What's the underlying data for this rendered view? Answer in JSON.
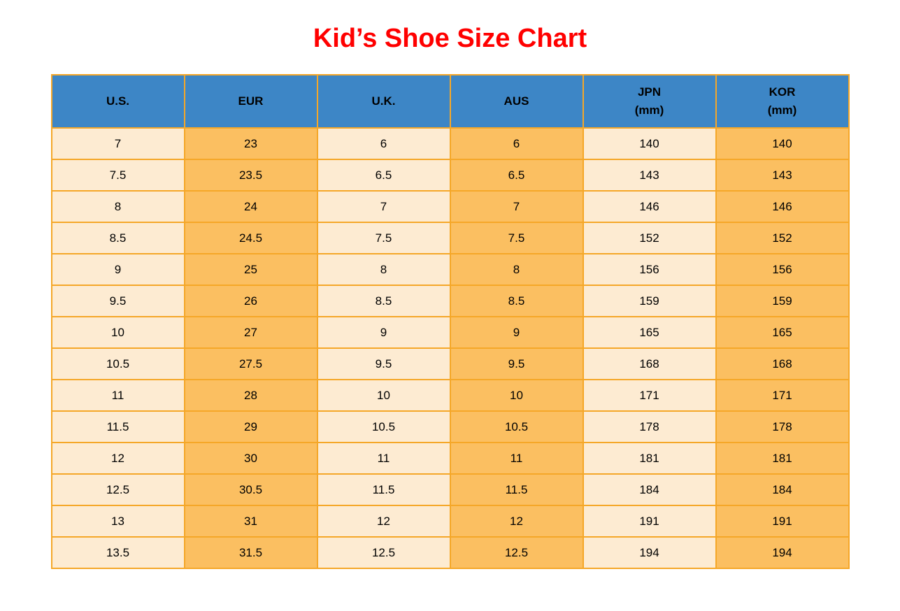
{
  "page": {
    "title": "Kid’s Shoe Size Chart"
  },
  "colors": {
    "title_text": "#ff0000",
    "header_bg": "#3d86c6",
    "header_text": "#000000",
    "cell_light_bg": "#fdebd2",
    "cell_orange_bg": "#fbbf61",
    "grid_border": "#f5a728",
    "body_text": "#000000",
    "page_bg": "#ffffff"
  },
  "chart_data": {
    "type": "table",
    "title": "Kid’s Shoe Size Chart",
    "columns": [
      {
        "id": "us",
        "label": "U.S."
      },
      {
        "id": "eur",
        "label": "EUR"
      },
      {
        "id": "uk",
        "label": "U.K."
      },
      {
        "id": "aus",
        "label": "AUS"
      },
      {
        "id": "jpn",
        "label": "JPN\n(mm)"
      },
      {
        "id": "kor",
        "label": "KOR\n(mm)"
      }
    ],
    "rows": [
      [
        "7",
        "23",
        "6",
        "6",
        "140",
        "140"
      ],
      [
        "7.5",
        "23.5",
        "6.5",
        "6.5",
        "143",
        "143"
      ],
      [
        "8",
        "24",
        "7",
        "7",
        "146",
        "146"
      ],
      [
        "8.5",
        "24.5",
        "7.5",
        "7.5",
        "152",
        "152"
      ],
      [
        "9",
        "25",
        "8",
        "8",
        "156",
        "156"
      ],
      [
        "9.5",
        "26",
        "8.5",
        "8.5",
        "159",
        "159"
      ],
      [
        "10",
        "27",
        "9",
        "9",
        "165",
        "165"
      ],
      [
        "10.5",
        "27.5",
        "9.5",
        "9.5",
        "168",
        "168"
      ],
      [
        "11",
        "28",
        "10",
        "10",
        "171",
        "171"
      ],
      [
        "11.5",
        "29",
        "10.5",
        "10.5",
        "178",
        "178"
      ],
      [
        "12",
        "30",
        "11",
        "11",
        "181",
        "181"
      ],
      [
        "12.5",
        "30.5",
        "11.5",
        "11.5",
        "184",
        "184"
      ],
      [
        "13",
        "31",
        "12",
        "12",
        "191",
        "191"
      ],
      [
        "13.5",
        "31.5",
        "12.5",
        "12.5",
        "194",
        "194"
      ]
    ],
    "layout": {
      "column_color_pattern": [
        "light",
        "orange",
        "light",
        "orange",
        "light",
        "orange"
      ],
      "grid": true,
      "header_style": "blue-bold"
    }
  }
}
